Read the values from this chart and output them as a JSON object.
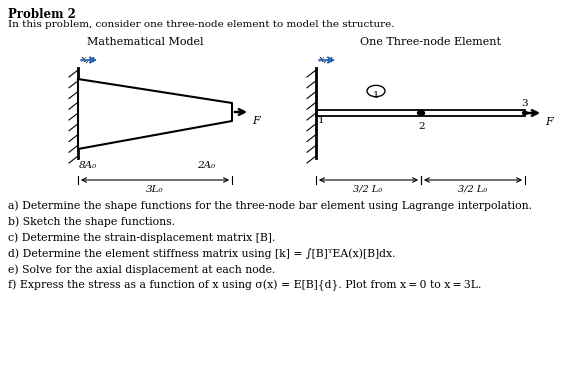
{
  "title": "Problem 2",
  "subtitle": "In this problem, consider one three-node element to model the structure.",
  "left_diagram_title": "Mathematical Model",
  "right_diagram_title": "One Three-node Element",
  "items": [
    "a) Determine the shape functions for the three-node bar element using Lagrange interpolation.",
    "b) Sketch the shape functions.",
    "c) Determine the strain‐displacement matrix [B].",
    "d) Determine the element stiffness matrix using [k] = ∫[B]ᵀEA(x)[B]dx.",
    "e) Solve for the axial displacement at each node.",
    "f) Express the stress as a function of x using σ(x) = E[B]{d}. Plot from x = 0 to x = 3L."
  ],
  "bg_color": "#ffffff",
  "arrow_color": "#2060c0",
  "black": "#000000",
  "figsize": [
    5.82,
    3.67
  ],
  "dpi": 100
}
